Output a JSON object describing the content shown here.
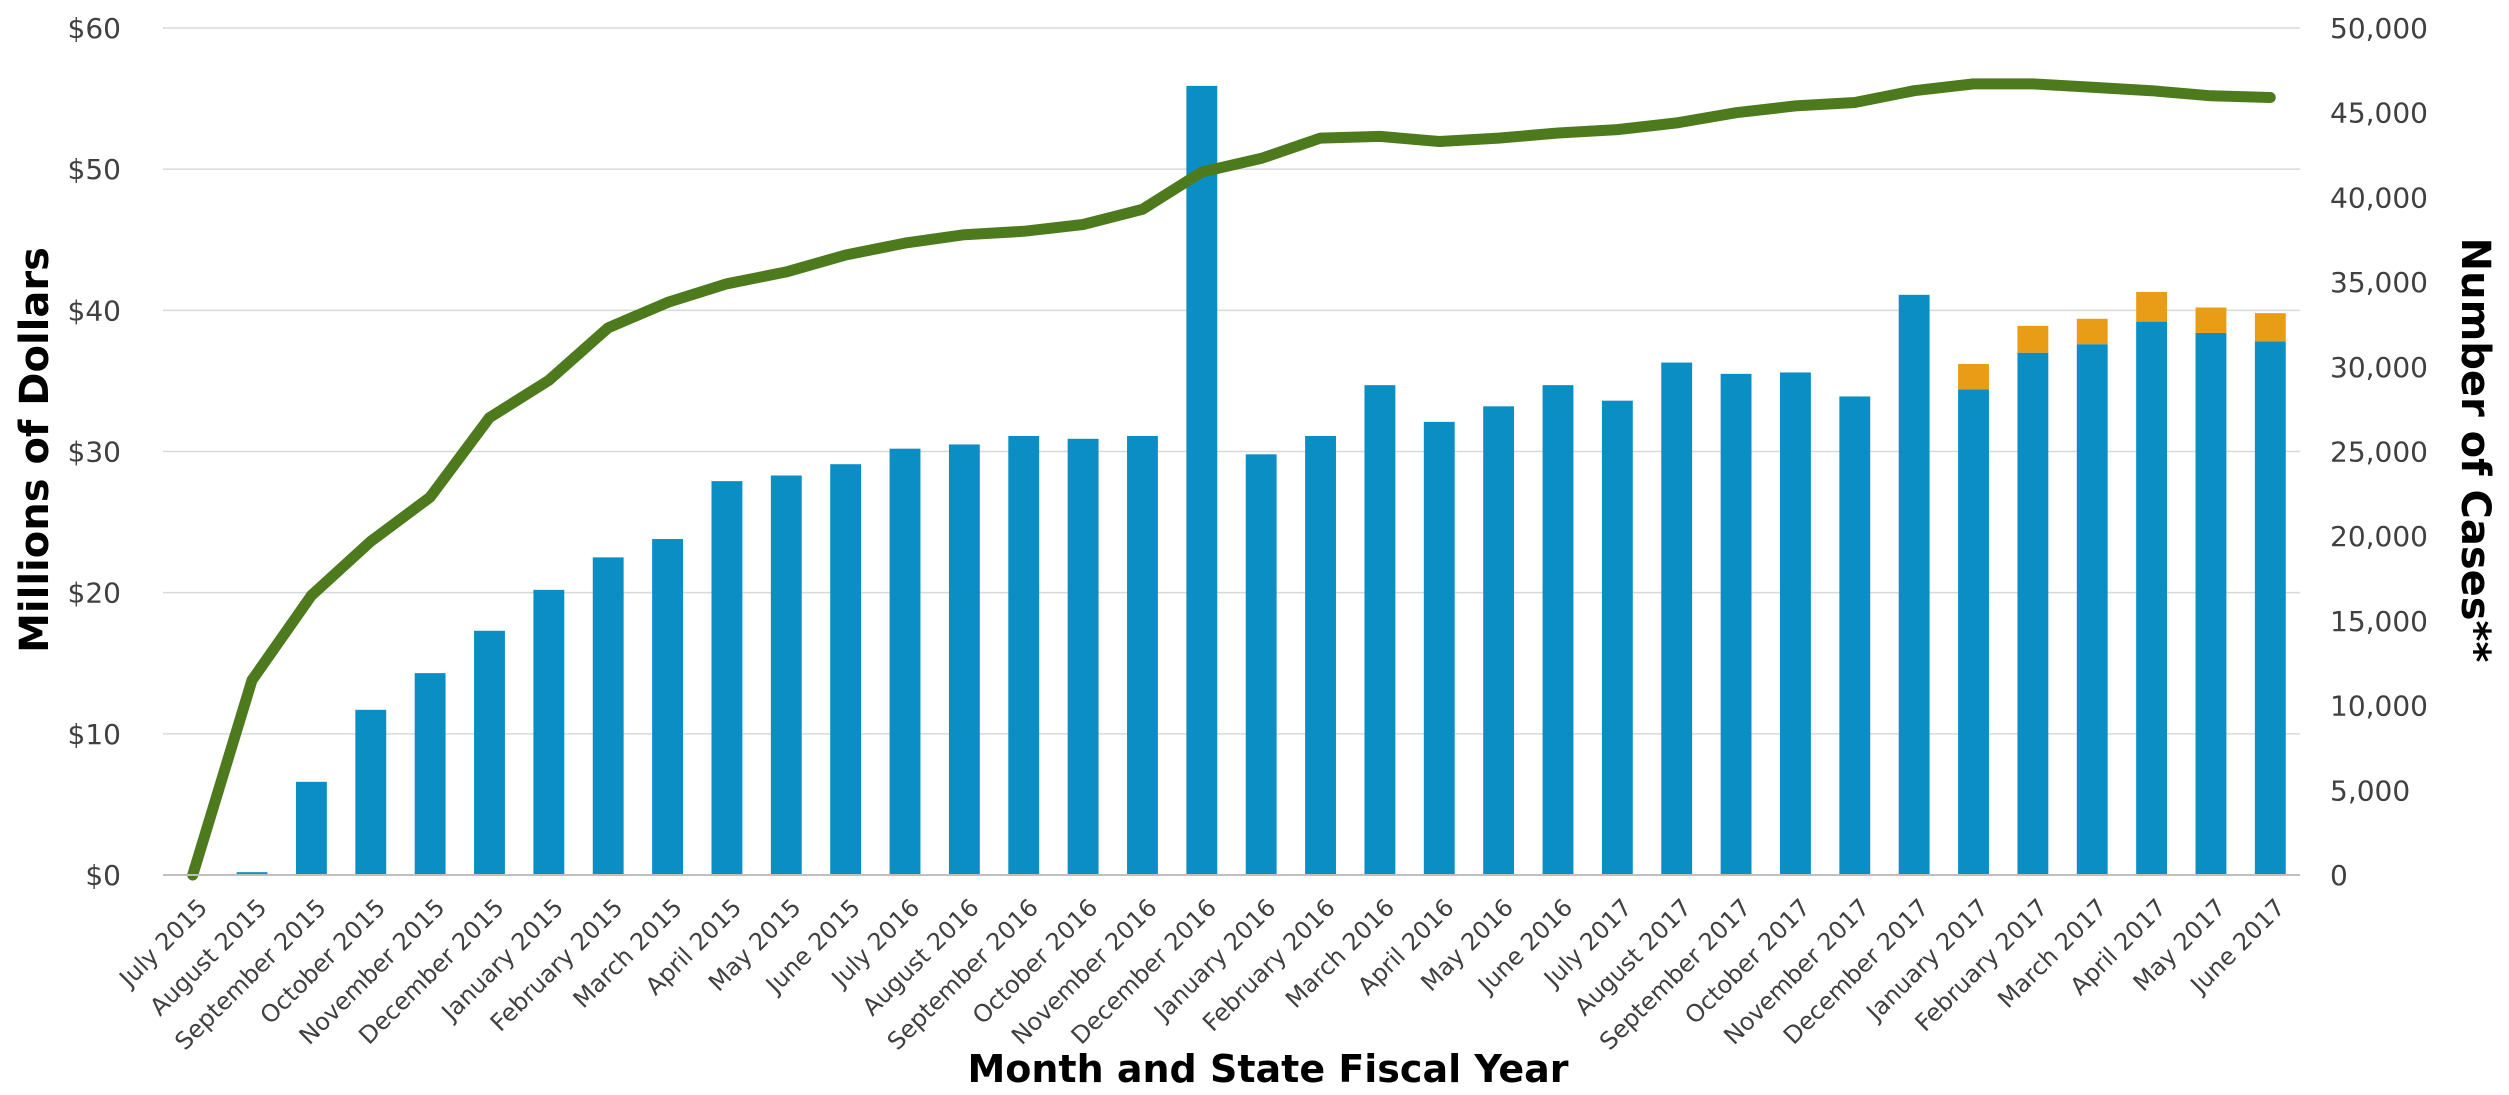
{
  "chart_data": {
    "type": "bar",
    "categories": [
      "July 2015",
      "August 2015",
      "September 2015",
      "October 2015",
      "November 2015",
      "December 2015",
      "January 2015",
      "February 2015",
      "March 2015",
      "April 2015",
      "May 2015",
      "June 2015",
      "July 2016",
      "August 2016",
      "September 2016",
      "October 2016",
      "November 2016",
      "December 2016",
      "January 2016",
      "February 2016",
      "March 2016",
      "April 2016",
      "May 2016",
      "June 2016",
      "July 2017",
      "August 2017",
      "September 2017",
      "October 2017",
      "November 2017",
      "December 2017",
      "January 2017",
      "February 2017",
      "March 2017",
      "April 2017",
      "May 2017",
      "June 2017"
    ],
    "series": [
      {
        "kind": "bar",
        "axis": "left",
        "color": "#0b8ec3",
        "values": [
          0,
          0.2,
          6.6,
          11.7,
          14.3,
          17.3,
          20.2,
          22.5,
          23.8,
          27.9,
          28.3,
          29.1,
          30.2,
          30.5,
          31.1,
          30.9,
          31.1,
          55.9,
          29.8,
          31.1,
          34.7,
          32.1,
          33.2,
          34.7,
          33.6,
          36.3,
          35.5,
          35.6,
          33.9,
          41.1,
          34.4,
          37.0,
          37.6,
          39.2,
          38.4,
          37.8
        ]
      },
      {
        "kind": "bar-stacked",
        "axis": "left",
        "color": "#e99d17",
        "values": [
          0,
          0,
          0,
          0,
          0,
          0,
          0,
          0,
          0,
          0,
          0,
          0,
          0,
          0,
          0,
          0,
          0,
          0,
          0,
          0,
          0,
          0,
          0,
          0,
          0,
          0,
          0,
          0,
          0,
          0,
          1.8,
          1.9,
          1.8,
          2.1,
          1.8,
          2.0
        ]
      },
      {
        "kind": "line",
        "axis": "right",
        "color": "#4c7a1d",
        "values": [
          0,
          11500,
          16500,
          19700,
          22300,
          27000,
          29200,
          32300,
          33800,
          34900,
          35600,
          36600,
          37300,
          37800,
          38000,
          38400,
          39300,
          41500,
          42300,
          43500,
          43600,
          43300,
          43500,
          43800,
          44000,
          44400,
          45000,
          45400,
          45600,
          46300,
          46700,
          46700,
          46500,
          46300,
          46000,
          45900
        ]
      }
    ],
    "ylabel": "Millions of Dollars",
    "y2label": "Number of Cases**",
    "xlabel": "Month and State Fiscal Year",
    "ylim": [
      0,
      60
    ],
    "y2lim": [
      0,
      50000
    ],
    "yticks": [
      "$0",
      "$10",
      "$20",
      "$30",
      "$40",
      "$50",
      "$60"
    ],
    "y2ticks": [
      "0",
      "5,000",
      "10,000",
      "15,000",
      "20,000",
      "25,000",
      "30,000",
      "35,000",
      "40,000",
      "45,000",
      "50,000"
    ],
    "grid": true
  }
}
